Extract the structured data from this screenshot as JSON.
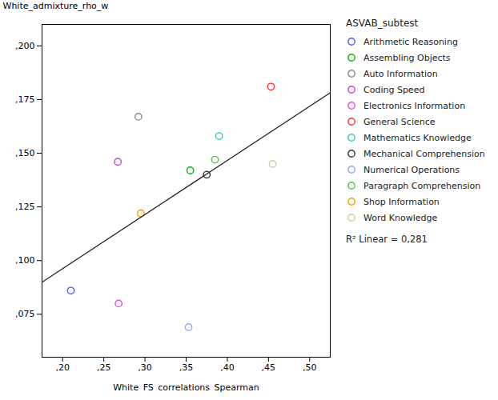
{
  "chart_data": {
    "type": "scatter",
    "xlabel": "White_FS_correlations_Spearman",
    "ylabel": "White_admixture_rho_w",
    "legend_title": "ASVAB_subtest",
    "legend": "right",
    "marker": "circle",
    "grid": false,
    "annotations": [
      "R² Linear = 0,281"
    ],
    "xlim": [
      0.175,
      0.525
    ],
    "ylim": [
      0.055,
      0.21
    ],
    "xticks": [
      {
        "value": 0.2,
        "label": ",20"
      },
      {
        "value": 0.25,
        "label": ",25"
      },
      {
        "value": 0.3,
        "label": ",30"
      },
      {
        "value": 0.35,
        "label": ",35"
      },
      {
        "value": 0.4,
        "label": ",40"
      },
      {
        "value": 0.45,
        "label": ",45"
      },
      {
        "value": 0.5,
        "label": ",50"
      }
    ],
    "yticks": [
      {
        "value": 0.075,
        "label": ",075"
      },
      {
        "value": 0.1,
        "label": ",100"
      },
      {
        "value": 0.125,
        "label": ",125"
      },
      {
        "value": 0.15,
        "label": ",150"
      },
      {
        "value": 0.175,
        "label": ",175"
      },
      {
        "value": 0.2,
        "label": ",200"
      }
    ],
    "series": [
      {
        "name": "Arithmetic Reasoning",
        "color": "#5555ff",
        "x": [
          0.21
        ],
        "values": [
          0.086
        ]
      },
      {
        "name": "Assembling Objects",
        "color": "#00bb00",
        "x": [
          0.355
        ],
        "values": [
          0.142
        ]
      },
      {
        "name": "Auto Information",
        "color": "#888888",
        "x": [
          0.292
        ],
        "values": [
          0.167
        ]
      },
      {
        "name": "Coding Speed",
        "color": "#cc44cc",
        "x": [
          0.267
        ],
        "values": [
          0.146
        ]
      },
      {
        "name": "Electronics Information",
        "color": "#ee44ee",
        "x": [
          0.268
        ],
        "values": [
          0.08
        ]
      },
      {
        "name": "General Science",
        "color": "#ff3333",
        "x": [
          0.453
        ],
        "values": [
          0.181
        ]
      },
      {
        "name": "Mathematics Knowledge",
        "color": "#33cccc",
        "x": [
          0.39
        ],
        "values": [
          0.158
        ]
      },
      {
        "name": "Mechanical Comprehension",
        "color": "#333333",
        "x": [
          0.375
        ],
        "values": [
          0.14
        ]
      },
      {
        "name": "Numerical Operations",
        "color": "#88aaff",
        "x": [
          0.353
        ],
        "values": [
          0.069
        ]
      },
      {
        "name": "Paragraph Comprehension",
        "color": "#44cc44",
        "x": [
          0.385
        ],
        "values": [
          0.147
        ]
      },
      {
        "name": "Shop Information",
        "color": "#ff9900",
        "x": [
          0.295
        ],
        "values": [
          0.122
        ]
      },
      {
        "name": "Word Knowledge",
        "color": "#ccccaa",
        "x": [
          0.455
        ],
        "values": [
          0.145
        ]
      },
      {
        "type": "line",
        "color": "#222222",
        "x": [
          0.175,
          0.525
        ],
        "values": [
          0.08996,
          0.17816
        ]
      }
    ]
  }
}
